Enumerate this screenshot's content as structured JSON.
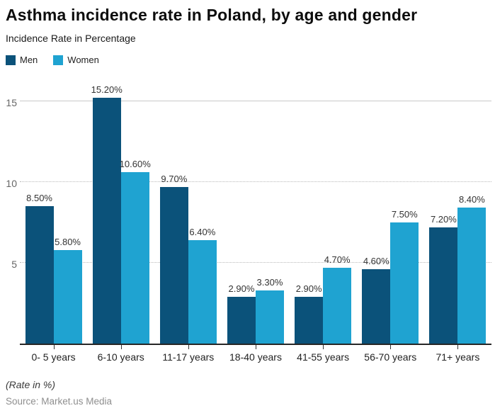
{
  "header": {
    "title": "Asthma incidence rate in Poland, by age and gender",
    "subtitle": "Incidence Rate in Percentage"
  },
  "chart_data": {
    "type": "bar",
    "title": "Asthma incidence rate in Poland, by age and gender",
    "subtitle": "Incidence Rate in Percentage",
    "categories": [
      "0- 5 years",
      "6-10 years",
      "11-17 years",
      "18-40 years",
      "41-55 years",
      "56-70 years",
      "71+ years"
    ],
    "series": [
      {
        "name": "Men",
        "color": "#0b527a",
        "values": [
          8.5,
          15.2,
          9.7,
          2.9,
          2.9,
          4.6,
          7.2
        ],
        "labels": [
          "8.50%",
          "15.20%",
          "9.70%",
          "2.90%",
          "2.90%",
          "4.60%",
          "7.20%"
        ]
      },
      {
        "name": "Women",
        "color": "#1fa3d1",
        "values": [
          5.8,
          10.6,
          6.4,
          3.3,
          4.7,
          7.5,
          8.4
        ],
        "labels": [
          "5.80%",
          "10.60%",
          "6.40%",
          "3.30%",
          "4.70%",
          "7.50%",
          "8.40%"
        ]
      }
    ],
    "xlabel": "",
    "ylabel": "Incidence Rate in Percentage",
    "y_ticks": [
      5,
      10,
      15
    ],
    "ylim": [
      0,
      15.2
    ],
    "grid": "horizontal dotted at 5 and 10, solid at 15",
    "legend_position": "top-left"
  },
  "footer": {
    "note": "(Rate in %)",
    "source": "Source: Market.us Media"
  }
}
